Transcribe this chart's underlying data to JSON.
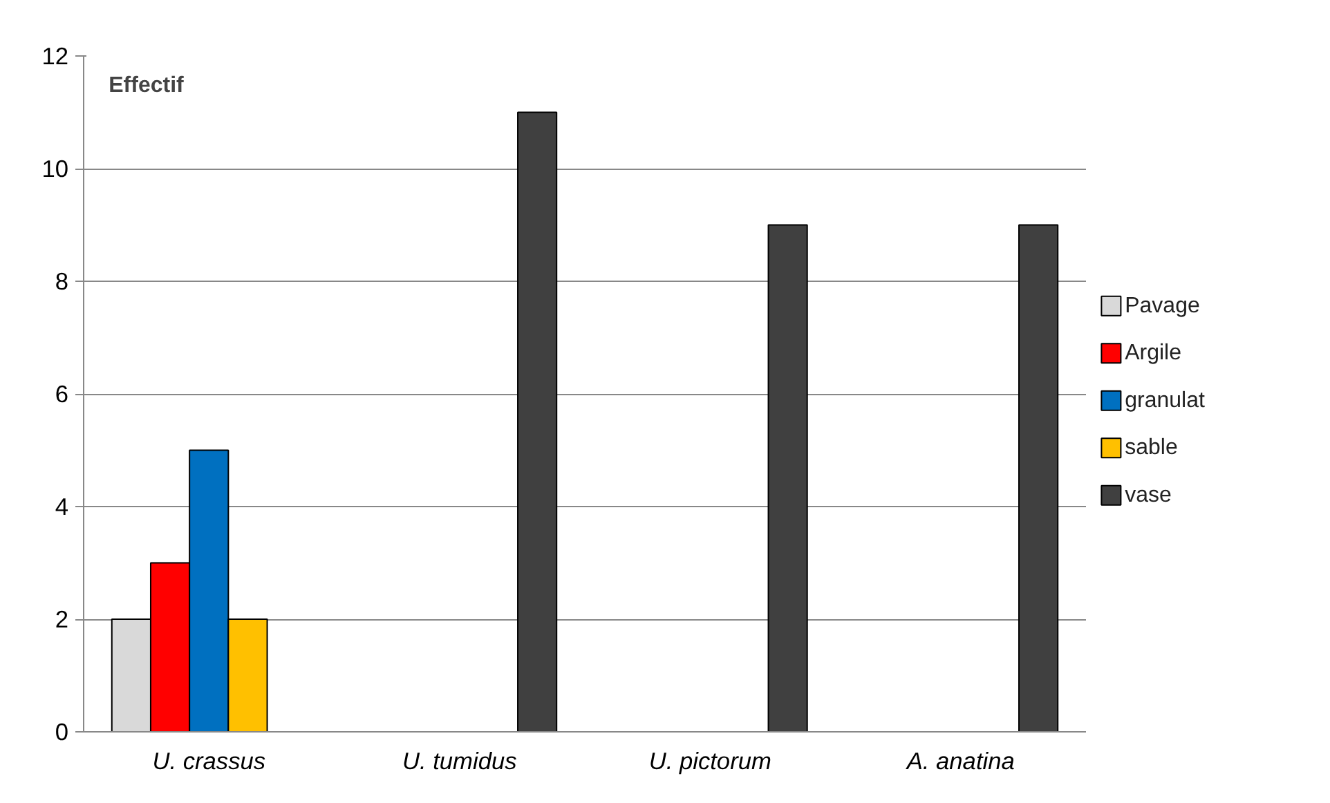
{
  "chart_data": {
    "type": "bar",
    "title": "Effectif",
    "categories": [
      "U. crassus",
      "U. tumidus",
      "U. pictorum",
      "A. anatina"
    ],
    "series": [
      {
        "name": "Pavage",
        "color": "#d9d9d9",
        "values": [
          2,
          null,
          null,
          null
        ]
      },
      {
        "name": "Argile",
        "color": "#ff0000",
        "values": [
          3,
          null,
          null,
          null
        ]
      },
      {
        "name": "granulat",
        "color": "#0070c0",
        "values": [
          5,
          null,
          null,
          null
        ]
      },
      {
        "name": "sable",
        "color": "#ffc000",
        "values": [
          2,
          null,
          null,
          null
        ]
      },
      {
        "name": "vase",
        "color": "#404040",
        "values": [
          null,
          11,
          9,
          9
        ]
      }
    ],
    "ylim": [
      0,
      12
    ],
    "yticks": [
      0,
      2,
      4,
      6,
      8,
      10,
      12
    ],
    "grid": "y",
    "legend": "right"
  }
}
